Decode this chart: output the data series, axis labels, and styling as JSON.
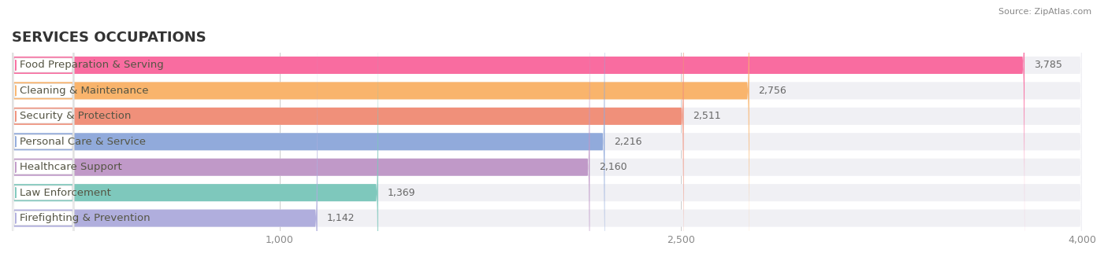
{
  "title": "SERVICES OCCUPATIONS",
  "source": "Source: ZipAtlas.com",
  "categories": [
    "Food Preparation & Serving",
    "Cleaning & Maintenance",
    "Security & Protection",
    "Personal Care & Service",
    "Healthcare Support",
    "Law Enforcement",
    "Firefighting & Prevention"
  ],
  "values": [
    3785,
    2756,
    2511,
    2216,
    2160,
    1369,
    1142
  ],
  "bar_colors": [
    "#F96CA0",
    "#F9B46C",
    "#F0907A",
    "#91AADB",
    "#C099C8",
    "#7EC8BC",
    "#B0AEDD"
  ],
  "bar_bg_color": "#F0F0F4",
  "xlim": [
    0,
    4000
  ],
  "xticks": [
    1000,
    2500,
    4000
  ],
  "title_fontsize": 13,
  "label_fontsize": 9.5,
  "value_fontsize": 9,
  "background_color": "#ffffff",
  "bar_height": 0.68,
  "bar_gap": 0.12
}
